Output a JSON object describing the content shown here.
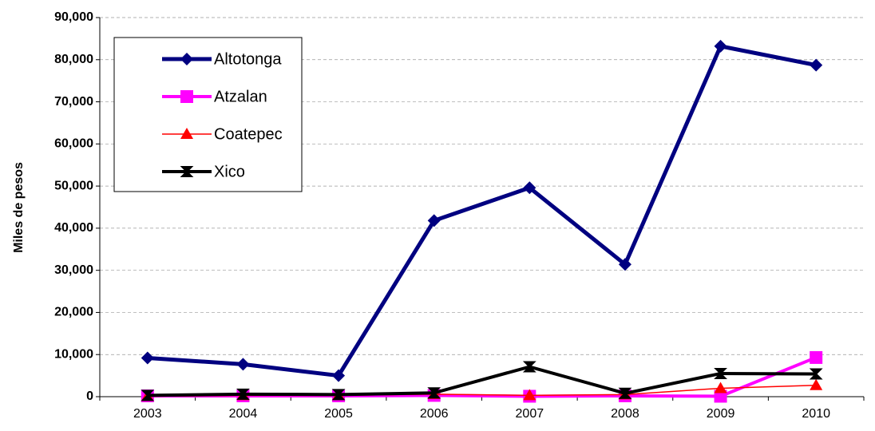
{
  "chart_data": {
    "type": "line",
    "y_label": "Miles de pesos",
    "categories": [
      "2003",
      "2004",
      "2005",
      "2006",
      "2007",
      "2008",
      "2009",
      "2010"
    ],
    "series": [
      {
        "name": "Altotonga",
        "color": "#000080",
        "marker": "diamond",
        "values": [
          9200,
          7700,
          5000,
          41800,
          49600,
          31400,
          83200,
          78700
        ]
      },
      {
        "name": "Atzalan",
        "color": "#ff00ff",
        "marker": "square",
        "values": [
          200,
          200,
          200,
          300,
          100,
          200,
          100,
          9300
        ]
      },
      {
        "name": "Coatepec",
        "color": "#ff0000",
        "marker": "triangle",
        "values": [
          100,
          300,
          300,
          600,
          300,
          500,
          2000,
          2700
        ]
      },
      {
        "name": "Xico",
        "color": "#000000",
        "marker": "x-square",
        "values": [
          300,
          600,
          500,
          900,
          7100,
          800,
          5500,
          5400
        ]
      }
    ],
    "ylim": [
      0,
      90000
    ],
    "yticks": [
      {
        "value": 0,
        "label": "0"
      },
      {
        "value": 10000,
        "label": "10,000"
      },
      {
        "value": 20000,
        "label": "20,000"
      },
      {
        "value": 30000,
        "label": "30,000"
      },
      {
        "value": 40000,
        "label": "40,000"
      },
      {
        "value": 50000,
        "label": "50,000"
      },
      {
        "value": 60000,
        "label": "60,000"
      },
      {
        "value": 70000,
        "label": "70,000"
      },
      {
        "value": 80000,
        "label": "80,000"
      },
      {
        "value": 90000,
        "label": "90,000"
      }
    ],
    "grid": true,
    "legend": "upper left"
  }
}
